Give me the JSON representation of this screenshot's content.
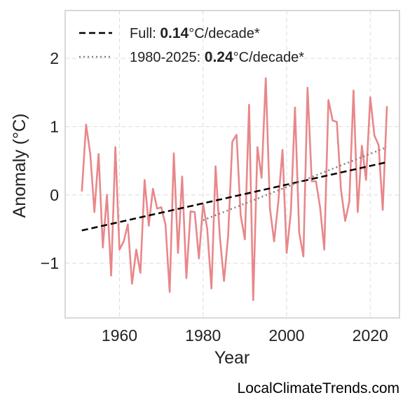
{
  "chart_data": {
    "type": "line",
    "xlabel": "Year",
    "ylabel": "Anomaly (°C)",
    "xlim": [
      1947,
      2027
    ],
    "ylim": [
      -1.8,
      2.7
    ],
    "xticks": [
      1960,
      1980,
      2000,
      2020
    ],
    "xtick_labels": [
      "1960",
      "1980",
      "2000",
      "2020"
    ],
    "yticks": [
      -1,
      0,
      1,
      2
    ],
    "ytick_labels": [
      "−1",
      "0",
      "1",
      "2"
    ],
    "grid": true,
    "legend_placement": "top-left",
    "series": [
      {
        "color": "#e8878a",
        "x": [
          1951,
          1952,
          1953,
          1954,
          1955,
          1956,
          1957,
          1958,
          1959,
          1960,
          1961,
          1962,
          1963,
          1964,
          1965,
          1966,
          1967,
          1968,
          1969,
          1970,
          1971,
          1972,
          1973,
          1974,
          1975,
          1976,
          1977,
          1978,
          1979,
          1980,
          1981,
          1982,
          1983,
          1984,
          1985,
          1986,
          1987,
          1988,
          1989,
          1990,
          1991,
          1992,
          1993,
          1994,
          1995,
          1996,
          1997,
          1998,
          1999,
          2000,
          2001,
          2002,
          2003,
          2004,
          2005,
          2006,
          2007,
          2008,
          2009,
          2010,
          2011,
          2012,
          2013,
          2014,
          2015,
          2016,
          2017,
          2018,
          2019,
          2020,
          2021,
          2022,
          2023,
          2024
        ],
        "values": [
          0.05,
          1.03,
          0.6,
          -0.25,
          0.6,
          -0.77,
          0,
          -1.18,
          0.7,
          -0.8,
          -0.68,
          -0.43,
          -1.3,
          -0.8,
          -1.14,
          0.22,
          -0.45,
          0.09,
          -0.2,
          -0.18,
          -0.43,
          -1.42,
          0.61,
          -0.85,
          0.27,
          -1.22,
          -0.24,
          -0.25,
          -0.93,
          -0.13,
          -0.5,
          -1.37,
          0.42,
          -0.6,
          -1.26,
          -0.6,
          0.78,
          0.88,
          -0.3,
          -0.65,
          1.32,
          -1.54,
          0.7,
          0.25,
          1.71,
          -0.2,
          -0.68,
          -0.1,
          0.66,
          -0.85,
          -0.25,
          1.28,
          -0.55,
          -0.9,
          1.57,
          0.2,
          0.2,
          -0.18,
          -0.8,
          1.39,
          1.09,
          1.07,
          0.08,
          -0.38,
          -0.1,
          1.53,
          -0.25,
          0.72,
          0.22,
          1.43,
          0.87,
          0.73,
          -0.22,
          1.3
        ]
      },
      {
        "name": "Full: 0.14°C/decade*",
        "style": "dashed",
        "color": "#000000",
        "x": [
          1951,
          2024
        ],
        "values": [
          -0.52,
          0.48
        ]
      },
      {
        "name": "1980-2025: 0.24°C/decade*",
        "style": "dotted",
        "color": "#808080",
        "x": [
          1980,
          2024
        ],
        "values": [
          -0.37,
          0.7
        ]
      }
    ]
  },
  "legend": {
    "full_prefix": "Full: ",
    "full_value": "0.14",
    "full_suffix": "°C/decade*",
    "recent_prefix": "1980-2025: ",
    "recent_value": "0.24",
    "recent_suffix": "°C/decade*"
  },
  "credit": "LocalClimateTrends.com"
}
